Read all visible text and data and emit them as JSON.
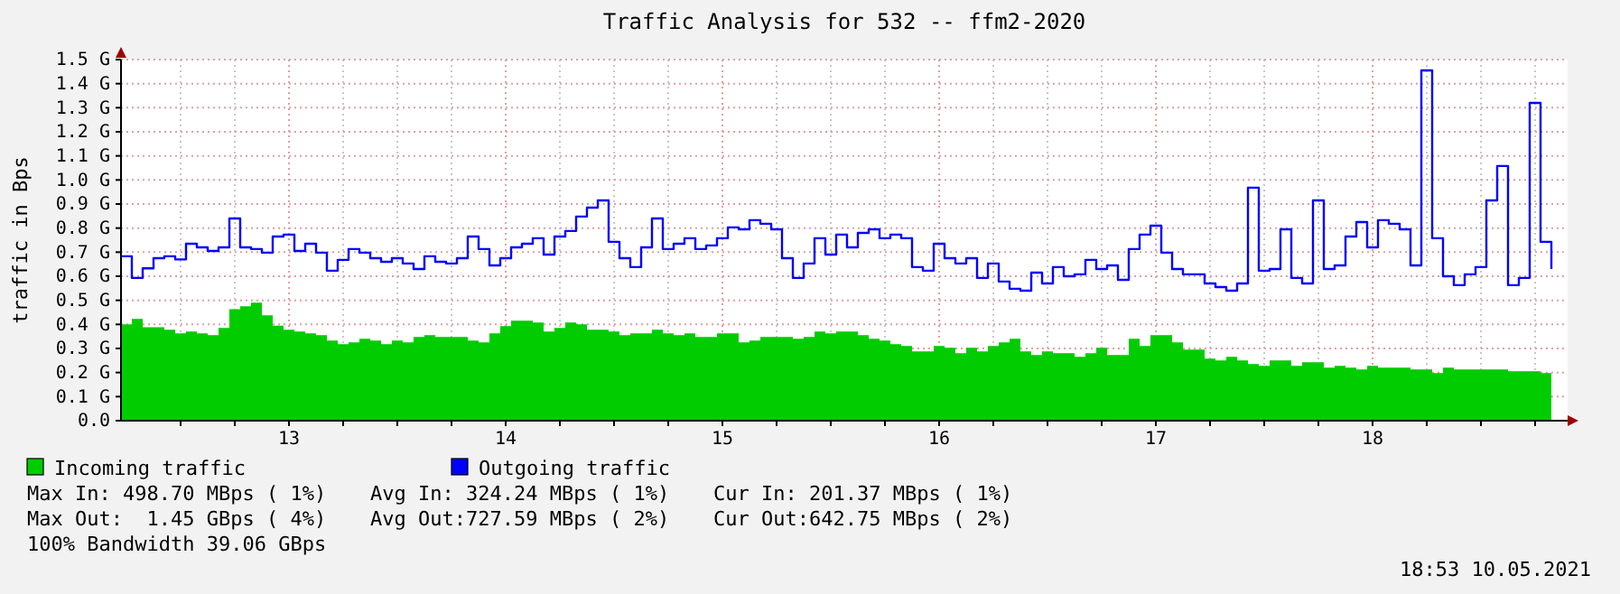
{
  "chart_data": {
    "type": "step",
    "title": "Traffic Analysis for 532 -- ffm2-2020",
    "ylabel": "traffic in Bps",
    "x": [
      12.225,
      12.275,
      12.325,
      12.375,
      12.425,
      12.475,
      12.525,
      12.575,
      12.625,
      12.675,
      12.725,
      12.775,
      12.825,
      12.875,
      12.925,
      12.975,
      13.025,
      13.075,
      13.125,
      13.175,
      13.225,
      13.275,
      13.325,
      13.375,
      13.425,
      13.475,
      13.525,
      13.575,
      13.625,
      13.675,
      13.725,
      13.775,
      13.825,
      13.875,
      13.925,
      13.975,
      14.025,
      14.075,
      14.125,
      14.175,
      14.225,
      14.275,
      14.325,
      14.375,
      14.425,
      14.475,
      14.525,
      14.575,
      14.625,
      14.675,
      14.725,
      14.775,
      14.825,
      14.875,
      14.925,
      14.975,
      15.025,
      15.075,
      15.125,
      15.175,
      15.225,
      15.275,
      15.325,
      15.375,
      15.425,
      15.475,
      15.525,
      15.575,
      15.625,
      15.675,
      15.725,
      15.775,
      15.825,
      15.875,
      15.925,
      15.975,
      16.025,
      16.075,
      16.125,
      16.175,
      16.225,
      16.275,
      16.325,
      16.375,
      16.425,
      16.475,
      16.525,
      16.575,
      16.625,
      16.675,
      16.725,
      16.775,
      16.825,
      16.875,
      16.925,
      16.975,
      17.025,
      17.075,
      17.125,
      17.175,
      17.225,
      17.275,
      17.325,
      17.375,
      17.425,
      17.475,
      17.525,
      17.575,
      17.625,
      17.675,
      17.725,
      17.775,
      17.825,
      17.875,
      17.925,
      17.975,
      18.025,
      18.075,
      18.125,
      18.175,
      18.225,
      18.275,
      18.325,
      18.375,
      18.425,
      18.475,
      18.525,
      18.575,
      18.625,
      18.675,
      18.725,
      18.775,
      18.825
    ],
    "series": [
      {
        "name": "Incoming traffic",
        "type": "area",
        "color": "#00cc00",
        "values": [
          0.4,
          0.423,
          0.388,
          0.388,
          0.378,
          0.363,
          0.37,
          0.363,
          0.355,
          0.385,
          0.463,
          0.475,
          0.49,
          0.438,
          0.395,
          0.378,
          0.37,
          0.363,
          0.355,
          0.333,
          0.318,
          0.325,
          0.34,
          0.333,
          0.318,
          0.333,
          0.325,
          0.348,
          0.355,
          0.348,
          0.348,
          0.348,
          0.333,
          0.325,
          0.363,
          0.393,
          0.415,
          0.415,
          0.408,
          0.37,
          0.385,
          0.408,
          0.4,
          0.378,
          0.378,
          0.37,
          0.355,
          0.363,
          0.363,
          0.378,
          0.363,
          0.355,
          0.363,
          0.348,
          0.348,
          0.363,
          0.363,
          0.325,
          0.333,
          0.348,
          0.348,
          0.348,
          0.34,
          0.348,
          0.37,
          0.363,
          0.37,
          0.37,
          0.355,
          0.34,
          0.333,
          0.318,
          0.31,
          0.288,
          0.288,
          0.31,
          0.303,
          0.28,
          0.303,
          0.288,
          0.31,
          0.325,
          0.34,
          0.288,
          0.273,
          0.288,
          0.28,
          0.28,
          0.265,
          0.28,
          0.303,
          0.273,
          0.273,
          0.34,
          0.31,
          0.355,
          0.355,
          0.325,
          0.295,
          0.295,
          0.258,
          0.25,
          0.265,
          0.25,
          0.235,
          0.228,
          0.25,
          0.25,
          0.228,
          0.243,
          0.243,
          0.22,
          0.228,
          0.22,
          0.213,
          0.228,
          0.22,
          0.22,
          0.22,
          0.213,
          0.213,
          0.198,
          0.22,
          0.213,
          0.213,
          0.213,
          0.213,
          0.213,
          0.205,
          0.205,
          0.205,
          0.198,
          0.198
        ]
      },
      {
        "name": "Outgoing traffic",
        "color": "#0000ff",
        "values": [
          0.683,
          0.593,
          0.633,
          0.675,
          0.683,
          0.67,
          0.735,
          0.72,
          0.705,
          0.72,
          0.84,
          0.72,
          0.713,
          0.698,
          0.765,
          0.773,
          0.705,
          0.735,
          0.698,
          0.623,
          0.668,
          0.713,
          0.698,
          0.675,
          0.66,
          0.675,
          0.653,
          0.63,
          0.683,
          0.66,
          0.653,
          0.675,
          0.765,
          0.713,
          0.645,
          0.675,
          0.72,
          0.735,
          0.758,
          0.69,
          0.765,
          0.788,
          0.848,
          0.885,
          0.915,
          0.743,
          0.675,
          0.638,
          0.72,
          0.84,
          0.713,
          0.735,
          0.758,
          0.713,
          0.728,
          0.758,
          0.803,
          0.795,
          0.833,
          0.818,
          0.795,
          0.675,
          0.593,
          0.653,
          0.758,
          0.69,
          0.773,
          0.72,
          0.78,
          0.795,
          0.758,
          0.773,
          0.758,
          0.638,
          0.623,
          0.735,
          0.675,
          0.653,
          0.675,
          0.593,
          0.653,
          0.578,
          0.548,
          0.54,
          0.615,
          0.57,
          0.638,
          0.6,
          0.608,
          0.668,
          0.63,
          0.645,
          0.585,
          0.713,
          0.773,
          0.81,
          0.698,
          0.63,
          0.608,
          0.608,
          0.57,
          0.555,
          0.54,
          0.57,
          0.968,
          0.623,
          0.63,
          0.795,
          0.593,
          0.57,
          0.915,
          0.63,
          0.645,
          0.765,
          0.825,
          0.72,
          0.833,
          0.818,
          0.795,
          0.645,
          1.455,
          0.758,
          0.6,
          0.563,
          0.608,
          0.638,
          0.915,
          1.058,
          0.563,
          0.593,
          1.32,
          0.743,
          0.63
        ]
      }
    ],
    "xlim": [
      12.225,
      18.9
    ],
    "xticks": [
      {
        "value": 12.5,
        "label": null
      },
      {
        "value": 12.75,
        "label": null
      },
      13,
      {
        "value": 13.25,
        "label": null
      },
      {
        "value": 13.5,
        "label": null
      },
      {
        "value": 13.75,
        "label": null
      },
      14,
      {
        "value": 14.25,
        "label": null
      },
      {
        "value": 14.5,
        "label": null
      },
      {
        "value": 14.75,
        "label": null
      },
      15,
      {
        "value": 15.25,
        "label": null
      },
      {
        "value": 15.5,
        "label": null
      },
      {
        "value": 15.75,
        "label": null
      },
      16,
      {
        "value": 16.25,
        "label": null
      },
      {
        "value": 16.5,
        "label": null
      },
      {
        "value": 16.75,
        "label": null
      },
      17,
      {
        "value": 17.25,
        "label": null
      },
      {
        "value": 17.5,
        "label": null
      },
      {
        "value": 17.75,
        "label": null
      },
      18,
      {
        "value": 18.25,
        "label": null
      },
      {
        "value": 18.5,
        "label": null
      },
      {
        "value": 18.75,
        "label": null
      }
    ],
    "ylim": [
      0,
      1.5
    ],
    "yticks": [
      {
        "value": 0,
        "label": "0.0"
      },
      {
        "value": 0.1,
        "label": "0.1 G"
      },
      {
        "value": 0.2,
        "label": "0.2 G"
      },
      {
        "value": 0.3,
        "label": "0.3 G"
      },
      {
        "value": 0.4,
        "label": "0.4 G"
      },
      {
        "value": 0.5,
        "label": "0.5 G"
      },
      {
        "value": 0.6,
        "label": "0.6 G"
      },
      {
        "value": 0.7,
        "label": "0.7 G"
      },
      {
        "value": 0.8,
        "label": "0.8 G"
      },
      {
        "value": 0.9,
        "label": "0.9 G"
      },
      {
        "value": 1.0,
        "label": "1.0 G"
      },
      {
        "value": 1.1,
        "label": "1.1 G"
      },
      {
        "value": 1.2,
        "label": "1.2 G"
      },
      {
        "value": 1.3,
        "label": "1.3 G"
      },
      {
        "value": 1.4,
        "label": "1.4 G"
      },
      {
        "value": 1.5,
        "label": "1.5 G"
      }
    ],
    "grid": true,
    "legend": "bottom left",
    "annotations": [
      "Max In: 498.70 MBps ( 1%)",
      "Avg In: 324.24 MBps ( 1%)",
      "Cur In: 201.37 MBps ( 1%)",
      "Max Out:  1.45 GBps ( 4%)",
      "Avg Out:727.59 MBps ( 2%)",
      "Cur Out:642.75 MBps ( 2%)",
      "100% Bandwidth 39.06 GBps",
      "18:53 10.05.2021"
    ]
  }
}
